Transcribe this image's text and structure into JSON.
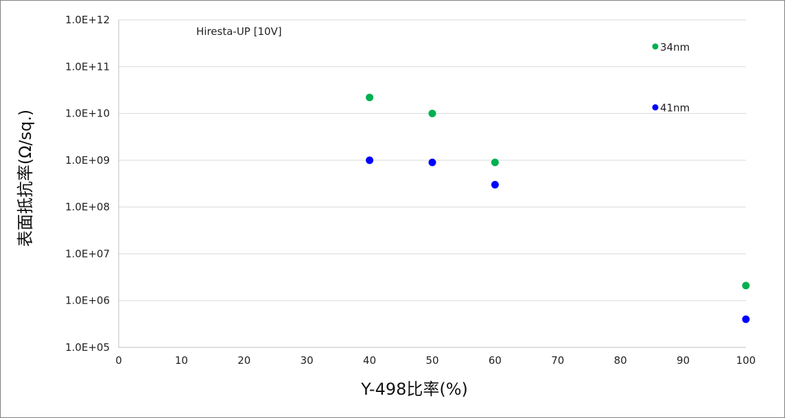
{
  "chart_data": {
    "type": "scatter",
    "title": "",
    "annotation": "Hiresta-UP [10V]",
    "xlabel": "Y-498比率(%)",
    "ylabel": "表面抵抗率(Ω/sq.)",
    "xlim": [
      0,
      100
    ],
    "x_ticks": [
      0,
      10,
      20,
      30,
      40,
      50,
      60,
      70,
      80,
      90,
      100
    ],
    "x_tick_labels": [
      "0",
      "10",
      "20",
      "30",
      "40",
      "50",
      "60",
      "70",
      "80",
      "90",
      "100"
    ],
    "ylim": [
      100000,
      1000000000000
    ],
    "y_scale": "log",
    "y_ticks": [
      100000,
      1000000,
      10000000,
      100000000,
      1000000000,
      10000000000,
      100000000000,
      1000000000000
    ],
    "y_tick_labels": [
      "1.0E+05",
      "1.0E+06",
      "1.0E+07",
      "1.0E+08",
      "1.0E+09",
      "1.0E+10",
      "1.0E+11",
      "1.0E+12"
    ],
    "grid": "horizontal",
    "legend": "inline labels",
    "series": [
      {
        "name": "34nm",
        "color": "#00b050",
        "x": [
          40,
          50,
          60,
          100
        ],
        "y": [
          22000000000,
          10000000000,
          900000000,
          2100000
        ]
      },
      {
        "name": "41nm",
        "color": "#0000ff",
        "x": [
          40,
          50,
          60,
          100
        ],
        "y": [
          1000000000,
          900000000,
          300000000,
          400000
        ]
      }
    ],
    "legend_entries": [
      {
        "label": "34nm",
        "color": "#00b050",
        "y": 270000000000
      },
      {
        "label": "41nm",
        "color": "#0000ff",
        "y": 13500000000
      }
    ]
  }
}
